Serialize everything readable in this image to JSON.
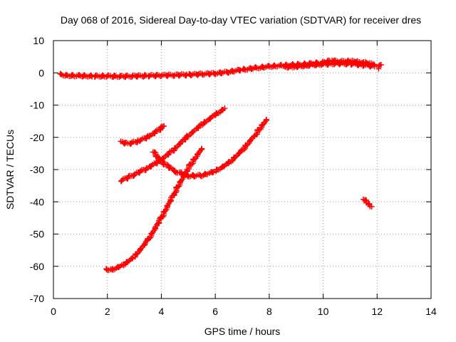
{
  "chart_data": {
    "type": "scatter",
    "title": "Day 068 of 2016, Sidereal Day-to-day VTEC variation (SDTVAR) for receiver dres",
    "xlabel": "GPS time / hours",
    "ylabel": "SDTVAR / TECUs",
    "xlim": [
      0,
      14
    ],
    "ylim": [
      -70,
      10
    ],
    "xticks": [
      "0",
      "2",
      "4",
      "6",
      "8",
      "10",
      "12",
      "14"
    ],
    "yticks": [
      "10",
      "0",
      "-10",
      "-20",
      "-30",
      "-40",
      "-50",
      "-60",
      "-70"
    ],
    "grid": true,
    "marker": "plus",
    "color": "#ff0000",
    "series": [
      {
        "x": [
          0.25,
          0.5,
          1.0,
          1.5,
          2.0,
          2.5,
          3.0,
          3.5,
          4.0,
          4.5,
          5.0,
          5.5,
          6.0,
          6.5,
          7.0,
          7.5,
          8.0,
          8.5,
          9.0,
          9.5,
          10.0,
          10.3,
          10.6,
          11.0,
          11.5,
          11.9
        ],
        "y": [
          -0.5,
          -0.8,
          -0.9,
          -1.0,
          -1.0,
          -1.1,
          -1.0,
          -0.9,
          -0.8,
          -0.7,
          -0.6,
          -0.4,
          -0.2,
          0.3,
          1.0,
          1.5,
          2.0,
          2.3,
          2.5,
          2.8,
          3.2,
          3.8,
          3.5,
          3.6,
          3.2,
          2.6
        ]
      },
      {
        "x": [
          8.6,
          9.0,
          9.5,
          10.0,
          10.5,
          11.0,
          11.5,
          11.9
        ],
        "y": [
          1.8,
          2.0,
          2.4,
          2.7,
          2.9,
          2.8,
          2.4,
          2.0
        ]
      },
      {
        "x": [
          12.05,
          12.15
        ],
        "y": [
          1.5,
          2.5
        ]
      },
      {
        "x": [
          2.5,
          2.8,
          3.2,
          3.6,
          4.1
        ],
        "y": [
          -21.5,
          -22.0,
          -21.0,
          -19.5,
          -16.5
        ]
      },
      {
        "x": [
          2.5,
          3.0,
          3.5,
          4.0,
          4.5,
          5.0,
          5.5,
          6.0,
          6.35
        ],
        "y": [
          -33.5,
          -31.5,
          -29.5,
          -27.0,
          -23.5,
          -19.5,
          -16.0,
          -13.0,
          -11.0
        ]
      },
      {
        "x": [
          3.7,
          4.0,
          4.5,
          5.0,
          5.5,
          6.0,
          6.5,
          7.0,
          7.5,
          7.9
        ],
        "y": [
          -24.5,
          -27.5,
          -30.5,
          -32.0,
          -31.8,
          -30.5,
          -28.0,
          -24.0,
          -19.0,
          -14.5
        ]
      },
      {
        "x": [
          1.95,
          2.2,
          2.6,
          3.0,
          3.5,
          4.0,
          4.5,
          5.0,
          5.5
        ],
        "y": [
          -61.0,
          -61.0,
          -59.5,
          -57.0,
          -52.0,
          -45.0,
          -37.0,
          -29.5,
          -23.5
        ]
      },
      {
        "x": [
          11.5,
          11.65,
          11.8
        ],
        "y": [
          -39.0,
          -40.5,
          -41.5
        ]
      }
    ]
  }
}
